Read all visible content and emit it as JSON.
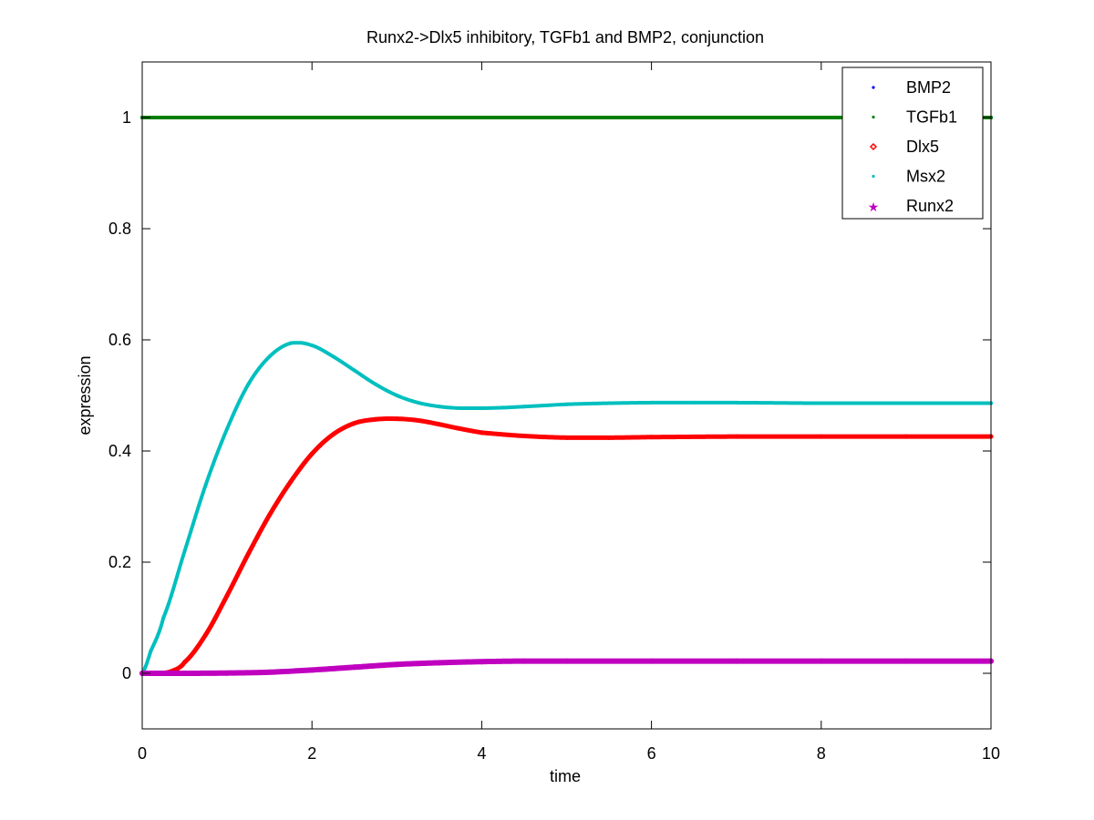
{
  "chart_data": {
    "type": "line",
    "title": "Runx2->Dlx5 inhibitory, TGFb1 and BMP2, conjunction",
    "xlabel": "time",
    "ylabel": "expression",
    "xlim": [
      0,
      10
    ],
    "ylim": [
      -0.1,
      1.1
    ],
    "xticks": [
      0,
      2,
      4,
      6,
      8,
      10
    ],
    "yticks": [
      0,
      0.2,
      0.4,
      0.6,
      0.8,
      1
    ],
    "xtick_labels": [
      "0",
      "2",
      "4",
      "6",
      "8",
      "10"
    ],
    "ytick_labels": [
      "0",
      "0.2",
      "0.4",
      "0.6",
      "0.8",
      "1"
    ],
    "grid": false,
    "legend_position": "top-right",
    "series": [
      {
        "name": "BMP2",
        "color": "#0000ff",
        "marker": "dot",
        "x": [
          0,
          1,
          2,
          3,
          4,
          5,
          6,
          7,
          8,
          9,
          10
        ],
        "values": [
          1,
          1,
          1,
          1,
          1,
          1,
          1,
          1,
          1,
          1,
          1
        ]
      },
      {
        "name": "TGFb1",
        "color": "#008000",
        "marker": "dot",
        "x": [
          0,
          1,
          2,
          3,
          4,
          5,
          6,
          7,
          8,
          9,
          10
        ],
        "values": [
          1,
          1,
          1,
          1,
          1,
          1,
          1,
          1,
          1,
          1,
          1
        ]
      },
      {
        "name": "Dlx5",
        "color": "#ff0000",
        "marker": "diamond",
        "x": [
          0,
          0.2,
          0.35,
          0.5,
          0.75,
          1.0,
          1.25,
          1.5,
          1.75,
          2.0,
          2.25,
          2.5,
          2.75,
          3.0,
          3.25,
          3.5,
          3.75,
          4.0,
          4.5,
          5.0,
          5.5,
          6.0,
          7.0,
          8.0,
          9.0,
          10.0
        ],
        "values": [
          0,
          0.0,
          0.004,
          0.02,
          0.07,
          0.14,
          0.215,
          0.285,
          0.345,
          0.395,
          0.43,
          0.45,
          0.457,
          0.458,
          0.455,
          0.448,
          0.44,
          0.433,
          0.427,
          0.424,
          0.424,
          0.425,
          0.426,
          0.426,
          0.426,
          0.426
        ]
      },
      {
        "name": "Msx2",
        "color": "#00bfbf",
        "marker": "dot",
        "x": [
          0,
          0.1,
          0.25,
          0.5,
          0.75,
          1.0,
          1.25,
          1.5,
          1.75,
          2.0,
          2.25,
          2.5,
          2.75,
          3.0,
          3.25,
          3.5,
          3.75,
          4.0,
          4.25,
          4.5,
          5.0,
          5.5,
          6.0,
          6.5,
          7.0,
          8.0,
          9.0,
          10.0
        ],
        "values": [
          0,
          0.04,
          0.1,
          0.22,
          0.34,
          0.44,
          0.52,
          0.57,
          0.594,
          0.59,
          0.57,
          0.545,
          0.52,
          0.5,
          0.487,
          0.48,
          0.477,
          0.477,
          0.478,
          0.48,
          0.484,
          0.486,
          0.487,
          0.487,
          0.487,
          0.486,
          0.486,
          0.486
        ]
      },
      {
        "name": "Runx2",
        "color": "#bf00bf",
        "marker": "star",
        "x": [
          0,
          0.5,
          1.0,
          1.5,
          2.0,
          2.5,
          3.0,
          3.5,
          4.0,
          4.5,
          5.0,
          6.0,
          7.0,
          8.0,
          9.0,
          10.0
        ],
        "values": [
          0,
          0.0,
          0.0005,
          0.002,
          0.006,
          0.011,
          0.016,
          0.019,
          0.021,
          0.022,
          0.022,
          0.022,
          0.022,
          0.022,
          0.022,
          0.022
        ]
      }
    ]
  }
}
